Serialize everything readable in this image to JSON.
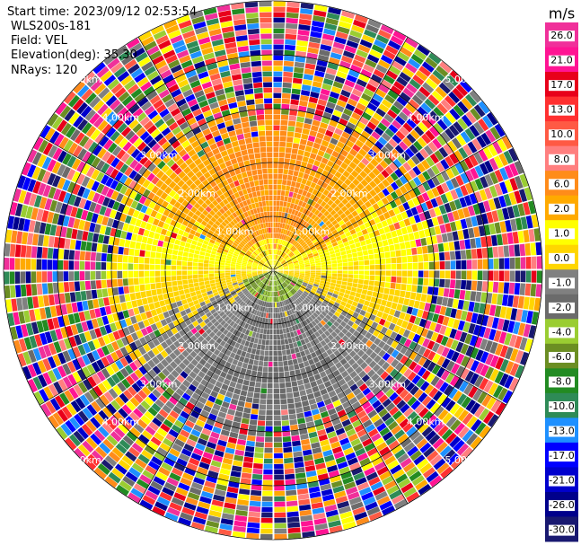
{
  "header": {
    "start_time": "Start time: 2023/09/12 02:53:54",
    "instrument": "WLS200s-181",
    "field": "Field: VEL",
    "elevation": "Elevation(deg): 35.30",
    "nrays": "NRays: 120"
  },
  "chart_data": {
    "type": "heatmap",
    "projection": "polar-ppi",
    "field": "VEL",
    "units": "m/s",
    "n_rays": 120,
    "range_rings_km": [
      1.0,
      2.0,
      3.0,
      4.0,
      5.0
    ],
    "ring_labels": [
      "1.00km",
      "2.00km",
      "3.00km",
      "4.00km",
      "5.00km"
    ],
    "max_range_km": 5.0,
    "colorbar": {
      "label": "m/s",
      "ticks": [
        "26.0",
        "21.0",
        "17.0",
        "13.0",
        "10.0",
        "8.0",
        "6.0",
        "2.0",
        "1.0",
        "0.0",
        "-1.0",
        "-2.0",
        "-4.0",
        "-6.0",
        "-8.0",
        "-10.0",
        "-13.0",
        "-17.0",
        "-21.0",
        "-26.0",
        "-30.0"
      ],
      "colors": [
        "#f0309a",
        "#ff1493",
        "#e8001a",
        "#ff3030",
        "#ff5a44",
        "#ff7f7f",
        "#ff8c1a",
        "#ffaa00",
        "#ffff00",
        "#ffd600",
        "#808080",
        "#6b6b6b",
        "#9acd32",
        "#6b8e23",
        "#228b22",
        "#2e8b57",
        "#1e90ff",
        "#0000ff",
        "#0000cd",
        "#00008b",
        "#191970"
      ]
    },
    "velocity_pattern": {
      "near_north_sector": "positive ~2.0 m/s (yellow)",
      "near_south_sector": "negative ~-2.0 m/s (olive/green)",
      "east_west": "near 0.0 m/s (gray)",
      "beyond_km": 2.8,
      "far_range": "noisy, all colors"
    }
  }
}
